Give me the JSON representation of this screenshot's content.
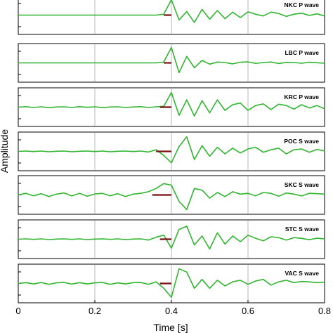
{
  "chart_data": {
    "type": "line",
    "xlabel": "Time [s]",
    "ylabel": "Amplitude",
    "xlim": [
      0,
      0.8
    ],
    "x_ticks": [
      "0",
      "0.2",
      "0.4",
      "0.6",
      "0.8"
    ],
    "x_tick_values": [
      0,
      0.2,
      0.4,
      0.6,
      0.8
    ],
    "grid": "vertical",
    "line_color": "#2fb52f",
    "marker_color": "#7a0f0f",
    "time_step": 0.02,
    "panels": [
      {
        "label": "NKC P wave",
        "marker": [
          0.38,
          0.4
        ],
        "values": [
          0,
          0,
          0,
          0,
          0,
          0,
          0,
          0,
          0,
          0,
          0,
          0,
          0,
          0,
          0,
          0,
          0,
          0,
          0,
          0.05,
          0.95,
          -0.3,
          0.22,
          -0.45,
          0.35,
          -0.25,
          0.28,
          -0.22,
          0.18,
          -0.15,
          0.2,
          0.05,
          -0.05,
          0.18,
          0.1,
          -0.08,
          0.05,
          0.12,
          -0.02,
          0.08,
          -0.05
        ]
      },
      {
        "label": "LBC P wave",
        "marker": [
          0.38,
          0.4
        ],
        "values": [
          0,
          0,
          0,
          0,
          0,
          0,
          0,
          0,
          0,
          0,
          0,
          0,
          0,
          0,
          0,
          0,
          0,
          0,
          0,
          0.05,
          0.95,
          -0.6,
          0.4,
          -0.3,
          0.15,
          -0.08,
          0.05,
          0.02,
          -0.06,
          0.04,
          0.06,
          -0.03,
          0.02,
          0.05,
          -0.04,
          0.03,
          0.02,
          -0.02,
          0.04,
          0.01,
          -0.02
        ]
      },
      {
        "label": "KRC P wave",
        "marker": [
          0.37,
          0.4
        ],
        "values": [
          0,
          0.03,
          -0.02,
          0.02,
          -0.03,
          0.01,
          0.02,
          -0.02,
          0.03,
          -0.01,
          0.02,
          -0.03,
          0.01,
          0.02,
          -0.02,
          0.01,
          0.03,
          -0.02,
          0.02,
          0.05,
          0.9,
          -0.5,
          0.45,
          -0.55,
          0.4,
          -0.35,
          0.45,
          -0.2,
          0.15,
          0.25,
          -0.2,
          0.1,
          0.2,
          -0.15,
          0.18,
          0.1,
          -0.12,
          0.15,
          -0.05,
          0.1,
          -0.1
        ]
      },
      {
        "label": "POC S wave",
        "marker": [
          0.36,
          0.4
        ],
        "values": [
          0,
          0.02,
          -0.01,
          0.02,
          -0.02,
          0.01,
          0.02,
          -0.02,
          0.01,
          0.02,
          -0.01,
          0.02,
          -0.02,
          0.01,
          0.02,
          -0.01,
          0.02,
          -0.04,
          0.1,
          -0.25,
          -0.7,
          0.3,
          0.9,
          -0.5,
          0.35,
          -0.3,
          0.25,
          -0.15,
          0.2,
          -0.1,
          0.15,
          0.25,
          -0.05,
          0.1,
          0.2,
          -0.15,
          0.1,
          0.15,
          -0.05,
          0.12,
          0.03
        ]
      },
      {
        "label": "SKC S wave",
        "marker": [
          0.35,
          0.4
        ],
        "values": [
          0,
          0.1,
          -0.05,
          0.08,
          -0.1,
          0.05,
          0.12,
          -0.06,
          0.1,
          -0.08,
          0.06,
          0.1,
          -0.05,
          0.08,
          -0.1,
          0.05,
          0.1,
          0.2,
          0.4,
          0.7,
          0.6,
          -0.4,
          -0.9,
          0.4,
          0.3,
          -0.2,
          0.15,
          -0.1,
          0.2,
          0.05,
          0.1,
          -0.05,
          0.15,
          0.1,
          -0.08,
          0.12,
          0.05,
          -0.06,
          0.1,
          0.08,
          0.05
        ]
      },
      {
        "label": "STC S wave",
        "marker": [
          0.37,
          0.4
        ],
        "values": [
          0,
          0.02,
          -0.01,
          0.02,
          -0.02,
          0.01,
          0.02,
          -0.01,
          0.02,
          -0.02,
          0.01,
          0.02,
          -0.01,
          0.02,
          -0.02,
          0.01,
          0.02,
          -0.05,
          0.12,
          0.25,
          -0.55,
          0.6,
          0.8,
          -0.35,
          0.2,
          -0.6,
          0.4,
          -0.3,
          0.2,
          -0.15,
          0.25,
          0.05,
          -0.1,
          0.15,
          0.1,
          -0.05,
          0.1,
          0.05,
          -0.03,
          0.06,
          0.02
        ]
      },
      {
        "label": "VAC S wave",
        "marker": [
          0.37,
          0.4
        ],
        "values": [
          0,
          0.05,
          -0.03,
          0.06,
          -0.05,
          0.04,
          0.06,
          -0.04,
          0.05,
          -0.03,
          0.04,
          0.06,
          -0.05,
          0.04,
          -0.03,
          0.05,
          0.06,
          -0.05,
          0.1,
          -0.3,
          -0.85,
          0.9,
          0.7,
          -0.3,
          0.25,
          -0.3,
          0.2,
          -0.15,
          0.1,
          0.2,
          -0.05,
          0.15,
          0.25,
          -0.1,
          0.1,
          0.2,
          0.05,
          0.12,
          0.1,
          0.05,
          0.08
        ]
      }
    ]
  }
}
